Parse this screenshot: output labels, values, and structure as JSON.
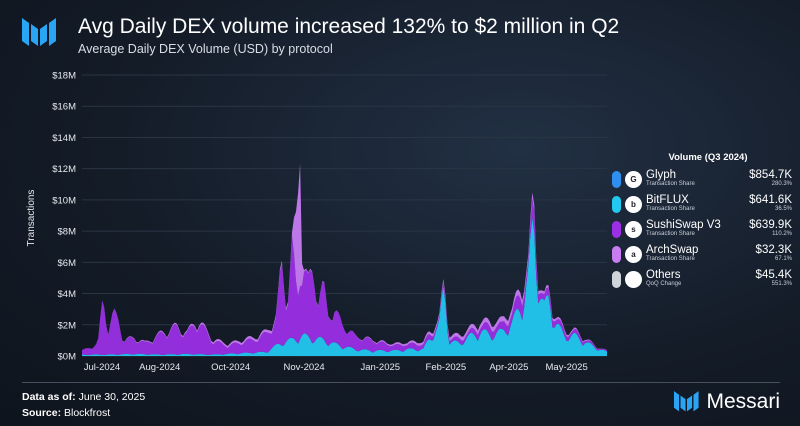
{
  "header": {
    "title": "Avg Daily DEX volume increased 132% to $2 million in Q2",
    "subtitle": "Average Daily DEX Volume (USD) by protocol"
  },
  "chart_data": {
    "type": "area",
    "title": "Avg Daily DEX volume increased 132% to $2 million in Q2",
    "subtitle": "Average Daily DEX Volume (USD) by protocol",
    "ylabel": "Transactions",
    "xlabel": "",
    "ylim": [
      0,
      18000000
    ],
    "y_ticks": [
      "$0M",
      "$2M",
      "$4M",
      "$6M",
      "$8M",
      "$10M",
      "$12M",
      "$14M",
      "$16M",
      "$18M"
    ],
    "x_ticks": [
      "Jul-2024",
      "Aug-2024",
      "Oct-2024",
      "Nov-2024",
      "Jan-2025",
      "Feb-2025",
      "Apr-2025",
      "May-2025"
    ],
    "stacked": true,
    "series_colors": {
      "Glyph": "#2f8ff0",
      "BitFLUX": "#22c8f0",
      "SushiSwap V3": "#9b2fe6",
      "ArchSwap": "#c77cf2",
      "Others": "#cfd3da"
    },
    "series": [
      {
        "name": "BitFLUX",
        "points": [
          [
            0,
            0.1
          ],
          [
            0.05,
            0.1
          ],
          [
            0.1,
            0.15
          ],
          [
            0.15,
            0.1
          ],
          [
            0.2,
            0.15
          ],
          [
            0.25,
            0.1
          ],
          [
            0.3,
            0.2
          ],
          [
            0.35,
            0.3
          ],
          [
            0.38,
            1.0
          ],
          [
            0.4,
            1.2
          ],
          [
            0.42,
            1.5
          ],
          [
            0.44,
            1.3
          ],
          [
            0.46,
            1.2
          ],
          [
            0.48,
            0.9
          ],
          [
            0.5,
            0.7
          ],
          [
            0.52,
            0.5
          ],
          [
            0.55,
            0.4
          ],
          [
            0.58,
            0.4
          ],
          [
            0.6,
            0.4
          ],
          [
            0.62,
            0.5
          ],
          [
            0.65,
            0.5
          ],
          [
            0.66,
            1.2
          ],
          [
            0.68,
            2.2
          ],
          [
            0.69,
            5.5
          ],
          [
            0.7,
            1.0
          ],
          [
            0.72,
            1.0
          ],
          [
            0.74,
            1.5
          ],
          [
            0.76,
            1.8
          ],
          [
            0.78,
            1.6
          ],
          [
            0.8,
            1.8
          ],
          [
            0.82,
            2.5
          ],
          [
            0.84,
            4.0
          ],
          [
            0.85,
            6.0
          ],
          [
            0.86,
            10.3
          ],
          [
            0.87,
            5.0
          ],
          [
            0.88,
            3.5
          ],
          [
            0.89,
            4.5
          ],
          [
            0.9,
            2.5
          ],
          [
            0.92,
            1.5
          ],
          [
            0.94,
            1.5
          ],
          [
            0.96,
            1.0
          ],
          [
            0.98,
            0.6
          ],
          [
            1.0,
            0.3
          ]
        ]
      },
      {
        "name": "SushiSwap V3",
        "points": [
          [
            0,
            0.3
          ],
          [
            0.03,
            0.8
          ],
          [
            0.04,
            4.2
          ],
          [
            0.05,
            2.0
          ],
          [
            0.06,
            3.0
          ],
          [
            0.07,
            2.5
          ],
          [
            0.08,
            1.0
          ],
          [
            0.1,
            1.2
          ],
          [
            0.12,
            0.8
          ],
          [
            0.15,
            1.5
          ],
          [
            0.18,
            2.0
          ],
          [
            0.2,
            1.5
          ],
          [
            0.22,
            2.5
          ],
          [
            0.25,
            1.0
          ],
          [
            0.28,
            0.6
          ],
          [
            0.3,
            0.8
          ],
          [
            0.33,
            1.0
          ],
          [
            0.36,
            1.5
          ],
          [
            0.37,
            2.0
          ],
          [
            0.38,
            5.8
          ],
          [
            0.39,
            2.5
          ],
          [
            0.4,
            7.0
          ],
          [
            0.41,
            3.0
          ],
          [
            0.42,
            6.0
          ],
          [
            0.43,
            4.0
          ],
          [
            0.44,
            5.0
          ],
          [
            0.45,
            3.0
          ],
          [
            0.46,
            4.0
          ],
          [
            0.47,
            2.0
          ],
          [
            0.48,
            2.5
          ],
          [
            0.5,
            1.5
          ],
          [
            0.52,
            1.0
          ],
          [
            0.55,
            0.8
          ],
          [
            0.58,
            0.5
          ],
          [
            0.6,
            0.4
          ],
          [
            0.62,
            0.4
          ],
          [
            0.65,
            0.4
          ],
          [
            0.68,
            0.2
          ],
          [
            0.7,
            0.3
          ],
          [
            0.72,
            0.3
          ],
          [
            0.74,
            0.3
          ],
          [
            0.76,
            0.5
          ],
          [
            0.78,
            0.6
          ],
          [
            0.8,
            0.5
          ],
          [
            0.82,
            0.8
          ],
          [
            0.84,
            1.0
          ],
          [
            0.85,
            0.5
          ],
          [
            0.86,
            1.5
          ],
          [
            0.87,
            0.6
          ],
          [
            0.88,
            0.5
          ],
          [
            0.9,
            0.5
          ],
          [
            0.92,
            0.3
          ],
          [
            0.94,
            0.3
          ],
          [
            0.96,
            0.2
          ],
          [
            0.98,
            0.1
          ],
          [
            1.0,
            0.1
          ]
        ]
      },
      {
        "name": "ArchSwap",
        "points": [
          [
            0,
            0
          ],
          [
            0.4,
            0.2
          ],
          [
            0.415,
            8.5
          ],
          [
            0.42,
            0.1
          ],
          [
            0.5,
            0
          ],
          [
            0.86,
            0.4
          ],
          [
            0.87,
            0.2
          ],
          [
            1.0,
            0
          ]
        ]
      }
    ]
  },
  "legend": {
    "title": "Volume (Q3 2024)",
    "items": [
      {
        "name": "Glyph",
        "sub": "Transaction Share",
        "value": "$854.7K",
        "pct": "280.3%",
        "color": "#2f8ff0",
        "logo": "G"
      },
      {
        "name": "BitFLUX",
        "sub": "Transaction Share",
        "value": "$641.6K",
        "pct": "36.5%",
        "color": "#22c8f0",
        "logo": "b"
      },
      {
        "name": "SushiSwap V3",
        "sub": "Transaction Share",
        "value": "$639.9K",
        "pct": "110.2%",
        "color": "#9b2fe6",
        "logo": "s"
      },
      {
        "name": "ArchSwap",
        "sub": "Transaction Share",
        "value": "$32.3K",
        "pct": "67.1%",
        "color": "#c77cf2",
        "logo": "a"
      },
      {
        "name": "Others",
        "sub": "QoQ Change",
        "value": "$45.4K",
        "pct": "551.3%",
        "color": "#cfd3da",
        "logo": ""
      }
    ]
  },
  "footer": {
    "data_label": "Data as of:",
    "data_value": " June 30, 2025",
    "source_label": "Source:",
    "source_value": " Blockfrost"
  },
  "brand": {
    "name": "Messari"
  }
}
